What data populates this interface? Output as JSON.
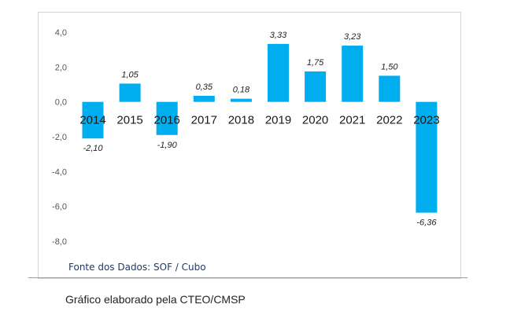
{
  "source_note": "Fonte dos Dados: SOF / Cubo",
  "caption": "Gráfico elaborado pela CTEO/CMSP",
  "colors": {
    "bar": "#00aeef",
    "axis_text": "#555555",
    "category_text": "#1a1a1a",
    "value_text": "#222222"
  },
  "chart_data": {
    "type": "bar",
    "title": "",
    "xlabel": "",
    "ylabel": "",
    "ylim": [
      -8.0,
      4.0
    ],
    "yticks": [
      "4,0",
      "2,0",
      "0,0",
      "-2,0",
      "-4,0",
      "-6,0",
      "-8,0"
    ],
    "grid": false,
    "legend": "none",
    "categories": [
      "2014",
      "2015",
      "2016",
      "2017",
      "2018",
      "2019",
      "2020",
      "2021",
      "2022",
      "2023"
    ],
    "values": [
      -2.1,
      1.05,
      -1.9,
      0.35,
      0.18,
      3.33,
      1.75,
      3.23,
      1.5,
      -6.36
    ],
    "value_labels": [
      "-2,10",
      "1,05",
      "-1,90",
      "0,35",
      "0,18",
      "3,33",
      "1,75",
      "3,23",
      "1,50",
      "-6,36"
    ]
  }
}
